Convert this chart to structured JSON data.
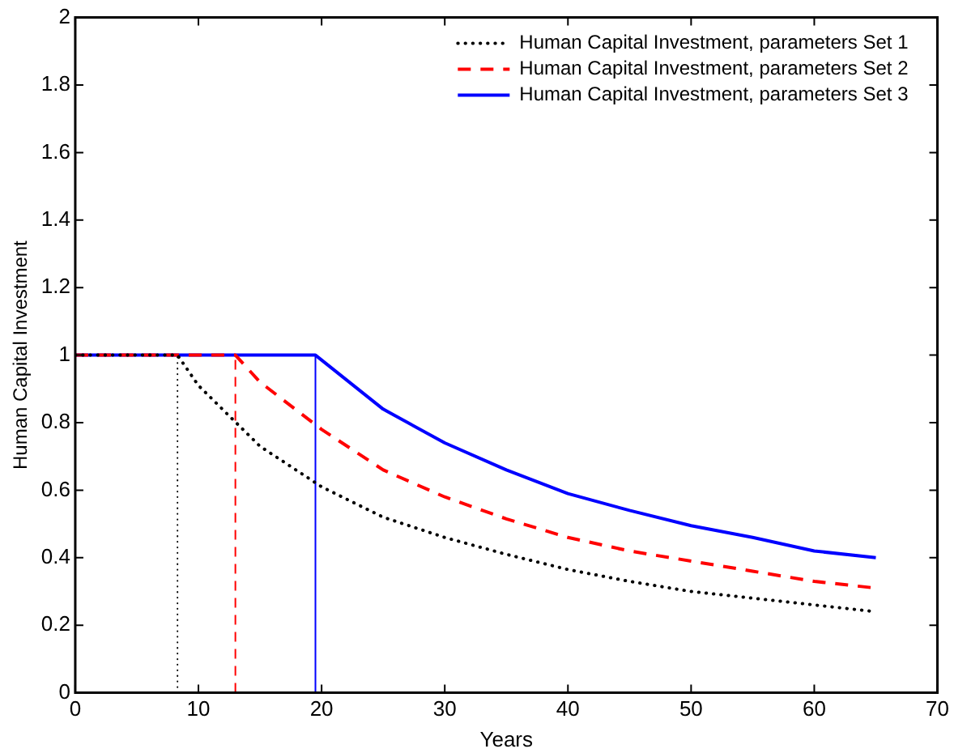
{
  "chart_data": {
    "type": "line",
    "xlabel": "Years",
    "ylabel": "Human Capital Investment",
    "xlim": [
      0,
      70
    ],
    "xticks": [
      0,
      10,
      20,
      30,
      40,
      50,
      60,
      70
    ],
    "ylim": [
      0,
      2
    ],
    "yticks": [
      0,
      0.2,
      0.4,
      0.6,
      0.8,
      1,
      1.2,
      1.4,
      1.6,
      1.8,
      2
    ],
    "grid": false,
    "legend": "top right",
    "marker": "none",
    "series": [
      {
        "name": "Human Capital Investment, parameters Set 1",
        "color": "#000000",
        "line_style": "dotted",
        "x": [
          0,
          8.3,
          10,
          15,
          20,
          25,
          30,
          35,
          40,
          45,
          50,
          55,
          60,
          65
        ],
        "values": [
          1,
          1,
          0.91,
          0.73,
          0.61,
          0.52,
          0.46,
          0.41,
          0.365,
          0.33,
          0.3,
          0.28,
          0.26,
          0.24
        ]
      },
      {
        "name": "Human Capital Investment, parameters Set 2",
        "color": "#ff0000",
        "line_style": "dashed",
        "x": [
          0,
          13,
          15,
          20,
          25,
          30,
          35,
          40,
          45,
          50,
          55,
          60,
          65
        ],
        "values": [
          1,
          1,
          0.92,
          0.78,
          0.66,
          0.58,
          0.515,
          0.46,
          0.42,
          0.39,
          0.36,
          0.33,
          0.31
        ]
      },
      {
        "name": "Human Capital Investment, parameters Set 3",
        "color": "#0000ff",
        "line_style": "solid",
        "x": [
          0,
          19.5,
          25,
          30,
          35,
          40,
          45,
          50,
          55,
          60,
          65
        ],
        "values": [
          1,
          1,
          0.84,
          0.74,
          0.66,
          0.59,
          0.54,
          0.495,
          0.46,
          0.42,
          0.4
        ]
      },
      {
        "color": "#000000",
        "line_style": "dotted",
        "x": [
          8.3,
          8.3
        ],
        "values": [
          0,
          1
        ]
      },
      {
        "color": "#ff0000",
        "line_style": "dashed",
        "x": [
          13,
          13
        ],
        "values": [
          0,
          1
        ]
      },
      {
        "color": "#0000ff",
        "line_style": "solid",
        "x": [
          19.5,
          19.5
        ],
        "values": [
          0,
          1
        ]
      }
    ]
  }
}
